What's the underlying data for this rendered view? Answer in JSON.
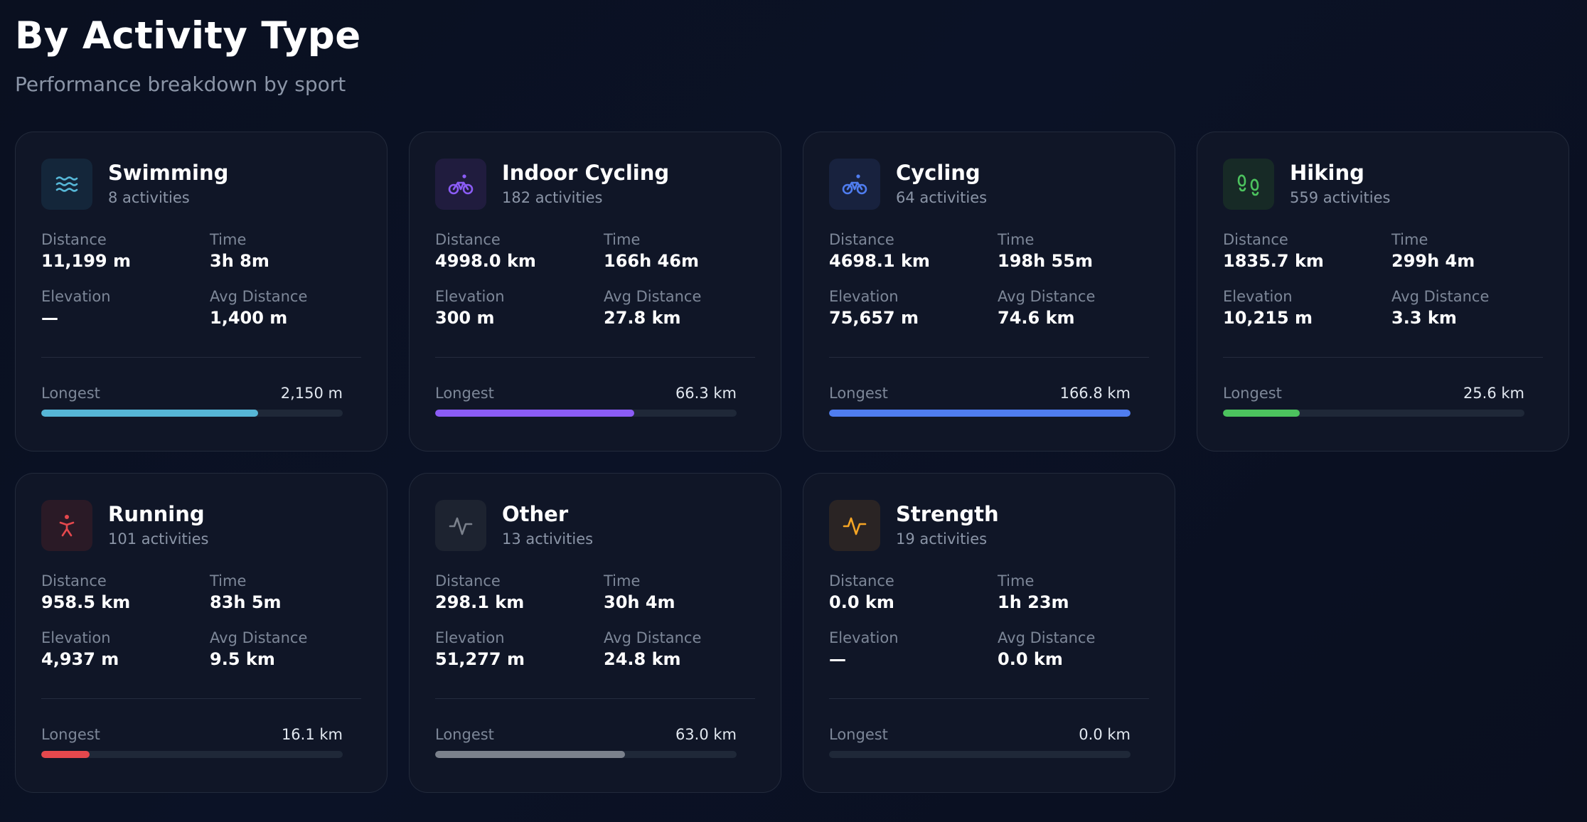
{
  "header": {
    "title": "By Activity Type",
    "subtitle": "Performance breakdown by sport"
  },
  "labels": {
    "distance": "Distance",
    "time": "Time",
    "elevation": "Elevation",
    "avg_distance": "Avg Distance",
    "longest": "Longest"
  },
  "activities": [
    {
      "name": "Swimming",
      "count": "8 activities",
      "icon": "waves-icon",
      "color": "#56b6d6",
      "icon_bg": "#14263a",
      "distance": "11,199 m",
      "time": "3h 8m",
      "elevation": "—",
      "avg_distance": "1,400 m",
      "longest": "2,150 m",
      "longest_fraction": 0.72
    },
    {
      "name": "Indoor Cycling",
      "count": "182 activities",
      "icon": "bike-icon",
      "color": "#8b5cf6",
      "icon_bg": "#201c3e",
      "distance": "4998.0 km",
      "time": "166h 46m",
      "elevation": "300 m",
      "avg_distance": "27.8 km",
      "longest": "66.3 km",
      "longest_fraction": 0.66
    },
    {
      "name": "Cycling",
      "count": "64 activities",
      "icon": "bike-icon",
      "color": "#4f7df0",
      "icon_bg": "#18223e",
      "distance": "4698.1 km",
      "time": "198h 55m",
      "elevation": "75,657 m",
      "avg_distance": "74.6 km",
      "longest": "166.8 km",
      "longest_fraction": 1.0
    },
    {
      "name": "Hiking",
      "count": "559 activities",
      "icon": "footprints-icon",
      "color": "#4cc35e",
      "icon_bg": "#172a26",
      "distance": "1835.7 km",
      "time": "299h 4m",
      "elevation": "10,215 m",
      "avg_distance": "3.3 km",
      "longest": "25.6 km",
      "longest_fraction": 0.255
    },
    {
      "name": "Running",
      "count": "101 activities",
      "icon": "runner-icon",
      "color": "#e5484d",
      "icon_bg": "#2a1a26",
      "distance": "958.5 km",
      "time": "83h 5m",
      "elevation": "4,937 m",
      "avg_distance": "9.5 km",
      "longest": "16.1 km",
      "longest_fraction": 0.16
    },
    {
      "name": "Other",
      "count": "13 activities",
      "icon": "activity-pulse-icon",
      "color": "#7b818c",
      "icon_bg": "#1d2330",
      "distance": "298.1 km",
      "time": "30h 4m",
      "elevation": "51,277 m",
      "avg_distance": "24.8 km",
      "longest": "63.0 km",
      "longest_fraction": 0.63
    },
    {
      "name": "Strength",
      "count": "19 activities",
      "icon": "activity-pulse-icon",
      "color": "#f5a524",
      "icon_bg": "#2a2424",
      "distance": "0.0 km",
      "time": "1h 23m",
      "elevation": "—",
      "avg_distance": "0.0 km",
      "longest": "0.0 km",
      "longest_fraction": 0.0
    }
  ]
}
